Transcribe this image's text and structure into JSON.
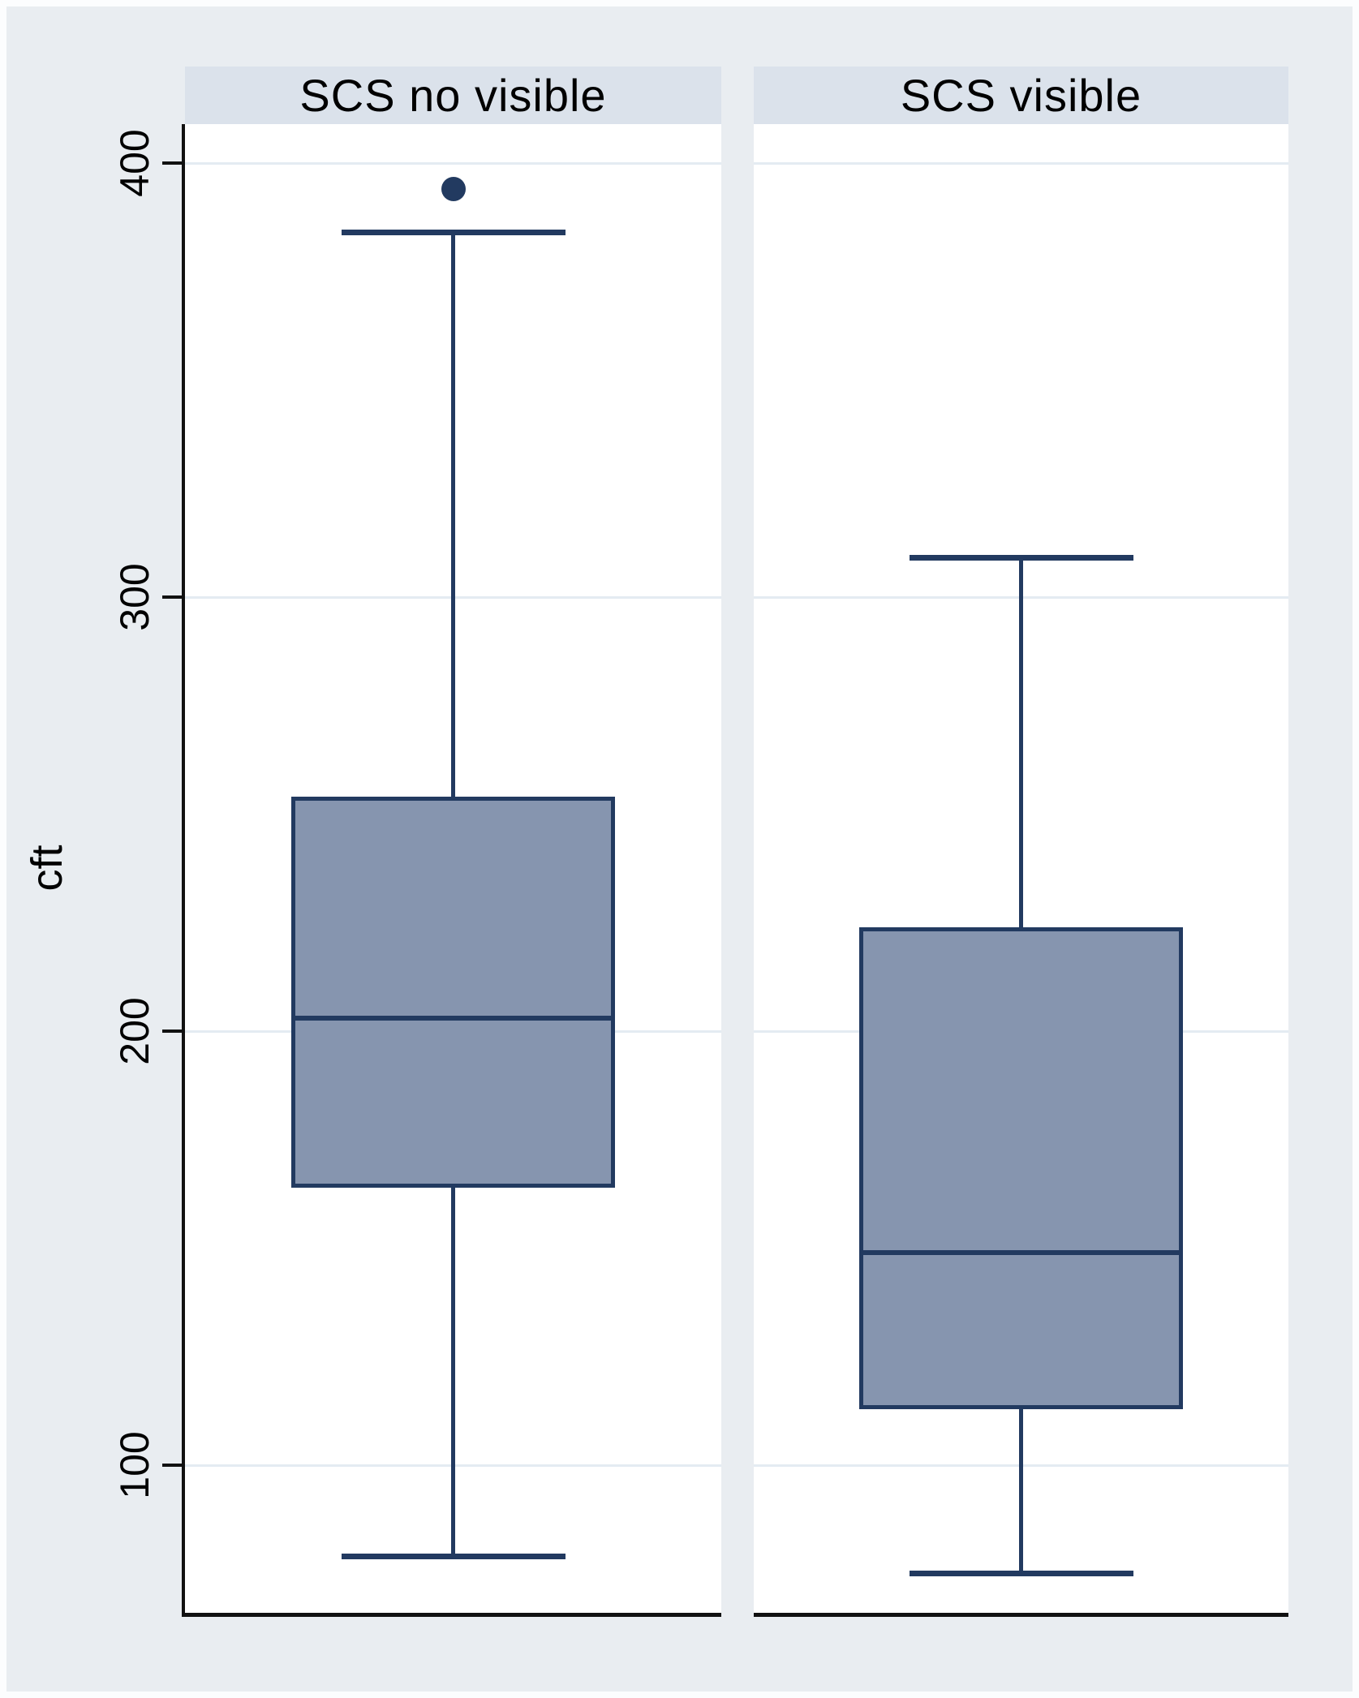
{
  "figure": {
    "ylabel": "cft"
  },
  "colors": {
    "background": "#e9edf1",
    "header_band": "#dbe2eb",
    "plot_background": "#ffffff",
    "gridline": "#e4ebf2",
    "box_fill": "#8695af",
    "box_line": "#223a60",
    "axis_line": "#111111",
    "text": "#000000"
  },
  "chart_data": {
    "type": "boxplot",
    "title": "",
    "xlabel": "",
    "ylabel": "cft",
    "yticks": [
      100,
      200,
      300,
      400
    ],
    "ylim": [
      66,
      409
    ],
    "grid": "horizontal",
    "panels": [
      {
        "label": "SCS no visible",
        "whisker_low": 79,
        "q1": 164,
        "median": 203,
        "q3": 254,
        "whisker_high": 384,
        "outliers": [
          394
        ]
      },
      {
        "label": "SCS visible",
        "whisker_low": 75,
        "q1": 113,
        "median": 149,
        "q3": 224,
        "whisker_high": 309,
        "outliers": []
      }
    ]
  }
}
